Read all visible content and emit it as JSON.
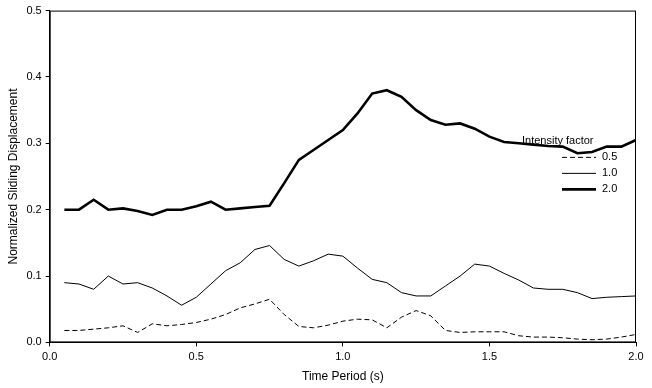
{
  "chart_data": {
    "type": "line",
    "x_label": "Time Period (s)",
    "y_label": "Normalized Sliding Displacement",
    "legend_title": "Intensity factor",
    "legend": "right",
    "grid": false,
    "xlim": [
      0,
      2
    ],
    "xticks": [
      {
        "value": 0,
        "label": "0.0"
      },
      0.5,
      {
        "value": 1,
        "label": "1.0"
      },
      1.5,
      {
        "value": 2,
        "label": "2.0"
      }
    ],
    "ylim": [
      0,
      0.5
    ],
    "yticks": [
      {
        "value": 0,
        "label": "0.0"
      },
      0.1,
      0.2,
      0.3,
      0.4,
      0.5
    ],
    "x": [
      0.05,
      0.1,
      0.15,
      0.2,
      0.25,
      0.3,
      0.35,
      0.4,
      0.45,
      0.5,
      0.55,
      0.6,
      0.65,
      0.7,
      0.75,
      0.8,
      0.85,
      0.9,
      0.95,
      1.0,
      1.05,
      1.1,
      1.15,
      1.2,
      1.25,
      1.3,
      1.35,
      1.4,
      1.45,
      1.5,
      1.55,
      1.6,
      1.65,
      1.7,
      1.75,
      1.8,
      1.85,
      1.9,
      1.95,
      2.0
    ],
    "series": [
      {
        "name": "0.5",
        "color": "#000000",
        "line_style": "dashed",
        "values": [
          0.018,
          0.018,
          0.02,
          0.022,
          0.025,
          0.015,
          0.028,
          0.025,
          0.027,
          0.03,
          0.035,
          0.042,
          0.052,
          0.058,
          0.065,
          0.042,
          0.024,
          0.022,
          0.026,
          0.032,
          0.035,
          0.034,
          0.022,
          0.038,
          0.048,
          0.04,
          0.018,
          0.015,
          0.016,
          0.016,
          0.016,
          0.01,
          0.008,
          0.008,
          0.007,
          0.005,
          0.004,
          0.005,
          0.008,
          0.012
        ]
      },
      {
        "name": "1.0",
        "color": "#000000",
        "line_style": "solid",
        "values": [
          0.09,
          0.088,
          0.08,
          0.1,
          0.088,
          0.09,
          0.082,
          0.07,
          0.056,
          0.068,
          0.088,
          0.108,
          0.12,
          0.14,
          0.146,
          0.125,
          0.115,
          0.123,
          0.133,
          0.13,
          0.112,
          0.095,
          0.09,
          0.075,
          0.07,
          0.07,
          0.085,
          0.1,
          0.118,
          0.115,
          0.104,
          0.094,
          0.082,
          0.08,
          0.08,
          0.075,
          0.066,
          0.068,
          0.069,
          0.07
        ]
      },
      {
        "name": "2.0",
        "color": "#000000",
        "line_style": "thick",
        "values": [
          0.2,
          0.2,
          0.215,
          0.2,
          0.202,
          0.198,
          0.192,
          0.2,
          0.2,
          0.205,
          0.212,
          0.2,
          0.202,
          0.204,
          0.206,
          0.24,
          0.275,
          0.29,
          0.305,
          0.32,
          0.345,
          0.375,
          0.38,
          0.37,
          0.35,
          0.335,
          0.328,
          0.33,
          0.322,
          0.31,
          0.302,
          0.3,
          0.298,
          0.296,
          0.295,
          0.285,
          0.287,
          0.295,
          0.295,
          0.305
        ]
      }
    ]
  }
}
